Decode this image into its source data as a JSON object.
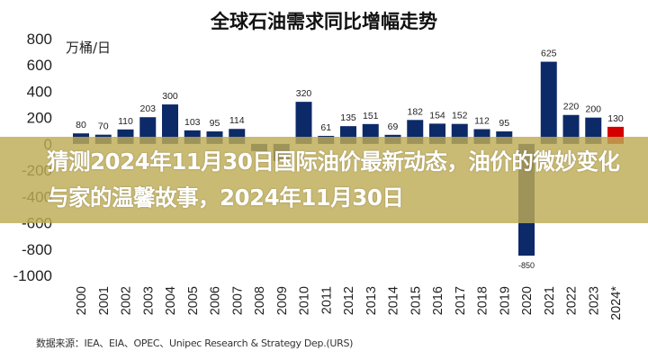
{
  "chart_data": {
    "type": "bar",
    "title": "全球石油需求同比增幅走势",
    "ylabel": "万桶/日",
    "xlabel": "",
    "ylim": [
      -1000,
      800
    ],
    "yticks": [
      800,
      600,
      400,
      200,
      0,
      -200,
      -400,
      -600,
      -800,
      -1000
    ],
    "grid": false,
    "categories": [
      "2000",
      "2001",
      "2002",
      "2003",
      "2004",
      "2005",
      "2006",
      "2007",
      "2008",
      "2009",
      "2010",
      "2011",
      "2012",
      "2013",
      "2014",
      "2015",
      "2016",
      "2017",
      "2018",
      "2019",
      "2020",
      "2021",
      "2022",
      "2023",
      "2024*"
    ],
    "values": [
      80,
      70,
      110,
      203,
      300,
      103,
      95,
      114,
      -55,
      -130,
      320,
      61,
      135,
      151,
      69,
      182,
      154,
      152,
      112,
      95,
      -850,
      625,
      220,
      200,
      130
    ],
    "data_labels": [
      "80",
      "70",
      "110",
      "203",
      "300",
      "103",
      "95",
      "114",
      "",
      "",
      "320",
      "61",
      "135",
      "151",
      "69",
      "182",
      "154",
      "152",
      "112",
      "95",
      "-850",
      "625",
      "220",
      "200",
      "130"
    ],
    "colors": {
      "actual": "#0d2a68",
      "forecast": "#d40000"
    },
    "forecast_category": "2024*"
  },
  "source": "数据来源：IEA、EIA、OPEC、Unipec Research & Strategy Dep.(URS)",
  "banner": {
    "headline": "猜测2024年11月30日国际油价最新动态，油价的微妙变化与家的温馨故事，2024年11月30日",
    "color": "#bead55"
  }
}
